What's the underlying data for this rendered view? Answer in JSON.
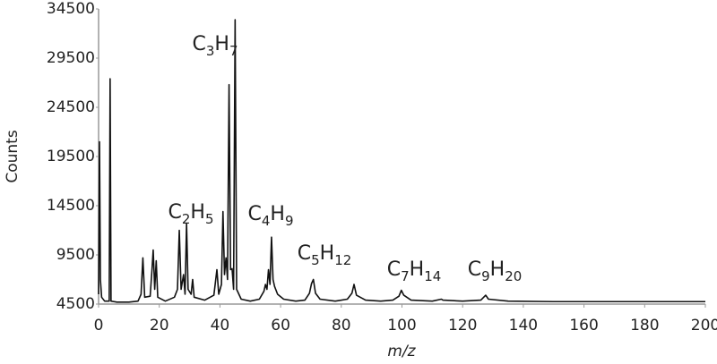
{
  "chart_data": {
    "type": "line",
    "x_label": "m/z",
    "y_label": "Counts",
    "x": [
      0,
      0.3,
      0.6,
      1,
      2,
      3.5,
      3.8,
      4.1,
      6,
      10,
      13,
      14,
      14.6,
      15.2,
      17,
      17.6,
      18,
      18.5,
      19,
      19.5,
      22,
      25,
      26,
      26.6,
      27.2,
      28,
      28.5,
      29,
      29.5,
      30.5,
      31,
      31.5,
      35,
      38,
      39,
      39.6,
      40.5,
      41,
      41.5,
      42,
      42.5,
      43,
      43.5,
      44,
      44.5,
      45,
      45.5,
      47,
      50,
      53,
      54.5,
      55,
      55.5,
      56,
      56.5,
      57,
      57.5,
      58,
      59,
      61,
      65,
      68,
      69.5,
      70.2,
      70.8,
      71.5,
      73,
      78,
      82,
      83.5,
      84.2,
      85,
      88,
      93,
      97,
      99,
      99.8,
      100.6,
      103,
      110,
      113,
      113.5,
      120,
      126,
      127.6,
      128.5,
      135,
      150,
      170,
      185,
      200
    ],
    "values": [
      5500,
      21000,
      7000,
      5200,
      4800,
      4800,
      27400,
      4800,
      4700,
      4700,
      4800,
      5500,
      9200,
      5200,
      5300,
      8000,
      10000,
      6000,
      8900,
      5200,
      4800,
      5200,
      6000,
      12000,
      6000,
      7500,
      5500,
      12700,
      6000,
      5500,
      7000,
      5200,
      4900,
      5400,
      8000,
      5500,
      6500,
      13900,
      7500,
      9200,
      7000,
      26800,
      8000,
      8100,
      6000,
      33400,
      6000,
      5000,
      4800,
      5000,
      5800,
      6500,
      6000,
      8000,
      6500,
      11300,
      7000,
      6300,
      5500,
      5000,
      4800,
      4900,
      5600,
      6600,
      7000,
      5600,
      5000,
      4800,
      5000,
      5600,
      6500,
      5400,
      4900,
      4800,
      4900,
      5300,
      5900,
      5400,
      4900,
      4800,
      5000,
      4900,
      4800,
      4900,
      5400,
      5000,
      4800,
      4750,
      4750,
      4750,
      4750
    ],
    "color": "#111111",
    "xlim": [
      0,
      200
    ],
    "xticks": [
      0,
      20,
      40,
      60,
      80,
      100,
      120,
      140,
      160,
      180,
      200
    ],
    "ylim": [
      4500,
      34500
    ],
    "yticks": [
      4500,
      9500,
      14500,
      19500,
      24500,
      29500,
      34500
    ],
    "annotations": [
      "C2H5",
      "C3H7",
      "C4H9",
      "C5H12",
      "C7H14",
      "C9H20"
    ]
  }
}
